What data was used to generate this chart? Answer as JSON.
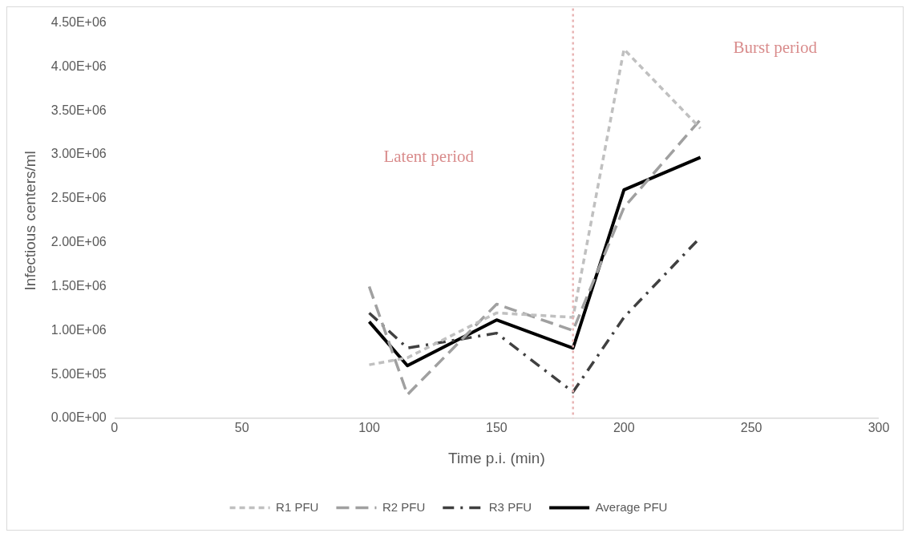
{
  "chart_data": {
    "type": "line",
    "xlabel": "Time p.i. (min)",
    "ylabel": "Infectious centers/ml",
    "x": [
      100,
      115,
      150,
      180,
      200,
      230
    ],
    "series": [
      {
        "name": "R1 PFU",
        "color": "#c0c0c0",
        "line_style": "dashed",
        "values": [
          610000,
          690000,
          1200000,
          1150000,
          4200000,
          3300000
        ]
      },
      {
        "name": "R2 PFU",
        "color": "#a0a0a0",
        "line_style": "dashed",
        "values": [
          1500000,
          270000,
          1300000,
          1000000,
          2400000,
          3400000
        ]
      },
      {
        "name": "R3 PFU",
        "color": "#404040",
        "line_style": "dashed",
        "values": [
          1200000,
          800000,
          970000,
          300000,
          1150000,
          2060000
        ]
      },
      {
        "name": "Average PFU",
        "color": "#000000",
        "line_style": "solid",
        "values": [
          1100000,
          600000,
          1120000,
          800000,
          2600000,
          2970000
        ]
      }
    ],
    "xlim": [
      0,
      300
    ],
    "xticks": [
      0,
      50,
      100,
      150,
      200,
      250,
      300
    ],
    "ylim": [
      0,
      4500000
    ],
    "yticks": [
      {
        "value": 0,
        "label": "0.00E+00"
      },
      {
        "value": 500000,
        "label": "5.00E+05"
      },
      {
        "value": 1000000,
        "label": "1.00E+06"
      },
      {
        "value": 1500000,
        "label": "1.50E+06"
      },
      {
        "value": 2000000,
        "label": "2.00E+06"
      },
      {
        "value": 2500000,
        "label": "2.50E+06"
      },
      {
        "value": 3000000,
        "label": "3.00E+06"
      },
      {
        "value": 3500000,
        "label": "3.50E+06"
      },
      {
        "value": 4000000,
        "label": "4.00E+06"
      },
      {
        "value": 4500000,
        "label": "4.50E+06"
      }
    ],
    "ref_lines": [
      {
        "axis": "x",
        "value": 180,
        "color": "#e8b4b4",
        "line_style": "dotted"
      }
    ],
    "annotations": [
      "Latent period",
      "Burst period"
    ],
    "grid": false,
    "legend": "bottom",
    "marker": "none"
  }
}
